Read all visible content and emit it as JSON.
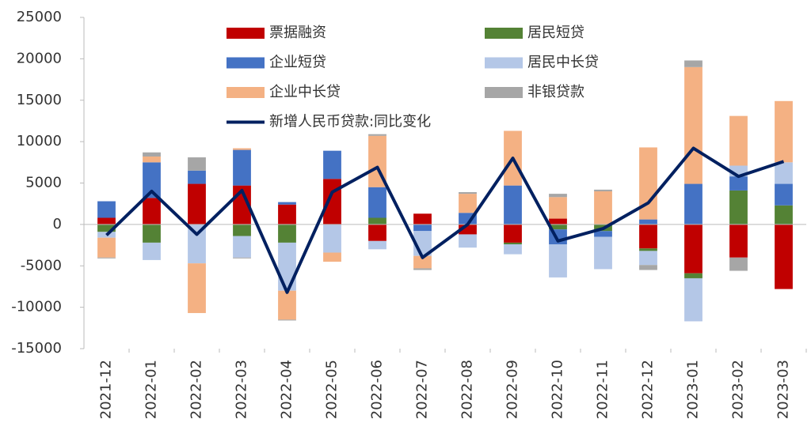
{
  "chart_data": {
    "type": "bar",
    "categories": [
      "2021-12",
      "2022-01",
      "2022-02",
      "2022-03",
      "2022-04",
      "2022-05",
      "2022-06",
      "2022-07",
      "2022-08",
      "2022-09",
      "2022-10",
      "2022-11",
      "2022-12",
      "2023-01",
      "2023-02",
      "2023-03"
    ],
    "series": [
      {
        "name": "票据融资",
        "color": "#c00000",
        "values": [
          800,
          3200,
          4900,
          4700,
          2400,
          5500,
          -2000,
          1300,
          -1200,
          -2200,
          700,
          0,
          -2900,
          -5900,
          -4000,
          -7800
        ]
      },
      {
        "name": "居民短贷",
        "color": "#548235",
        "values": [
          -900,
          -2200,
          0,
          -1400,
          -2200,
          0,
          800,
          0,
          0,
          -200,
          -600,
          -800,
          -300,
          -600,
          4100,
          2300
        ]
      },
      {
        "name": "企业短贷",
        "color": "#4472c4",
        "values": [
          2000,
          4300,
          1600,
          4300,
          300,
          3400,
          3700,
          -800,
          1400,
          4700,
          -1800,
          -700,
          600,
          4900,
          1700,
          2600
        ]
      },
      {
        "name": "居民中长贷",
        "color": "#b4c7e7",
        "values": [
          -700,
          -2100,
          -4700,
          -2600,
          -5800,
          -3400,
          -1000,
          -3000,
          -1600,
          -1200,
          -4000,
          -3900,
          -1700,
          -5200,
          1300,
          2600
        ]
      },
      {
        "name": "企业中长贷",
        "color": "#f4b183",
        "values": [
          -2400,
          700,
          -6000,
          200,
          -3500,
          -1100,
          6200,
          -1500,
          2300,
          6600,
          2600,
          4000,
          8700,
          14100,
          6000,
          7400
        ]
      },
      {
        "name": "非银贷款",
        "color": "#a6a6a6",
        "values": [
          -100,
          500,
          1600,
          -100,
          -100,
          0,
          200,
          -200,
          200,
          0,
          400,
          200,
          -600,
          800,
          -1600,
          0
        ]
      },
      {
        "name": "新增人民币贷款:同比变化",
        "color": "#002060",
        "type": "line",
        "values": [
          -1300,
          4000,
          -1200,
          4100,
          -8200,
          3900,
          6900,
          -4000,
          0,
          8000,
          -2000,
          -500,
          2600,
          9200,
          5800,
          7600
        ]
      }
    ],
    "ylim": [
      -15000,
      25000
    ],
    "yticks": [
      -15000,
      -10000,
      -5000,
      0,
      5000,
      10000,
      15000,
      20000,
      25000
    ]
  }
}
